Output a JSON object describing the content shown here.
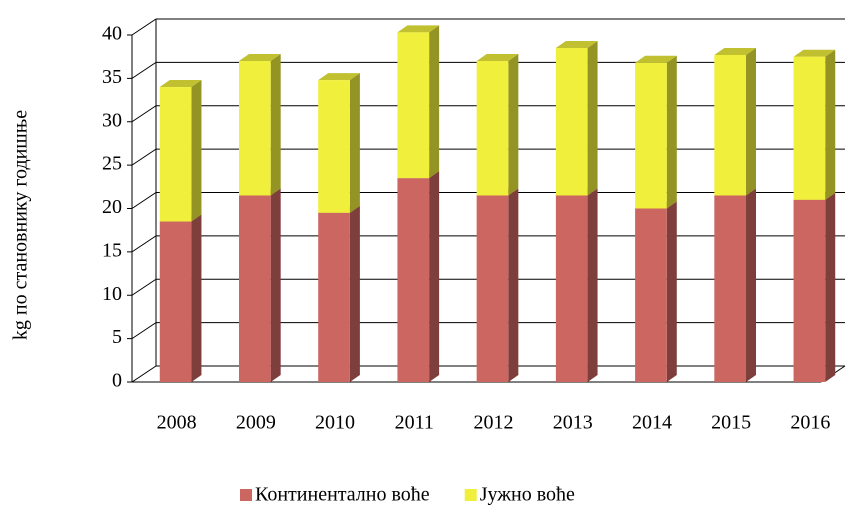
{
  "chart_data": {
    "type": "bar",
    "stacked": true,
    "ylabel": "kg по становнику годишње",
    "categories": [
      "2008",
      "2009",
      "2010",
      "2011",
      "2012",
      "2013",
      "2014",
      "2015",
      "2016"
    ],
    "series": [
      {
        "name": "Континентално воће",
        "color": "#cc6661",
        "values": [
          18.5,
          21.5,
          19.5,
          23.5,
          21.5,
          21.5,
          20,
          21.5,
          21
        ]
      },
      {
        "name": "Јужно воће",
        "color": "#f0f03c",
        "values": [
          15.5,
          15.5,
          15.3,
          16.8,
          15.5,
          17,
          16.8,
          16.2,
          16.5
        ]
      }
    ],
    "ylim": [
      0,
      40
    ],
    "yticks": [
      0,
      5,
      10,
      15,
      20,
      25,
      30,
      35,
      40
    ],
    "grid": true,
    "legend": "bottom"
  }
}
